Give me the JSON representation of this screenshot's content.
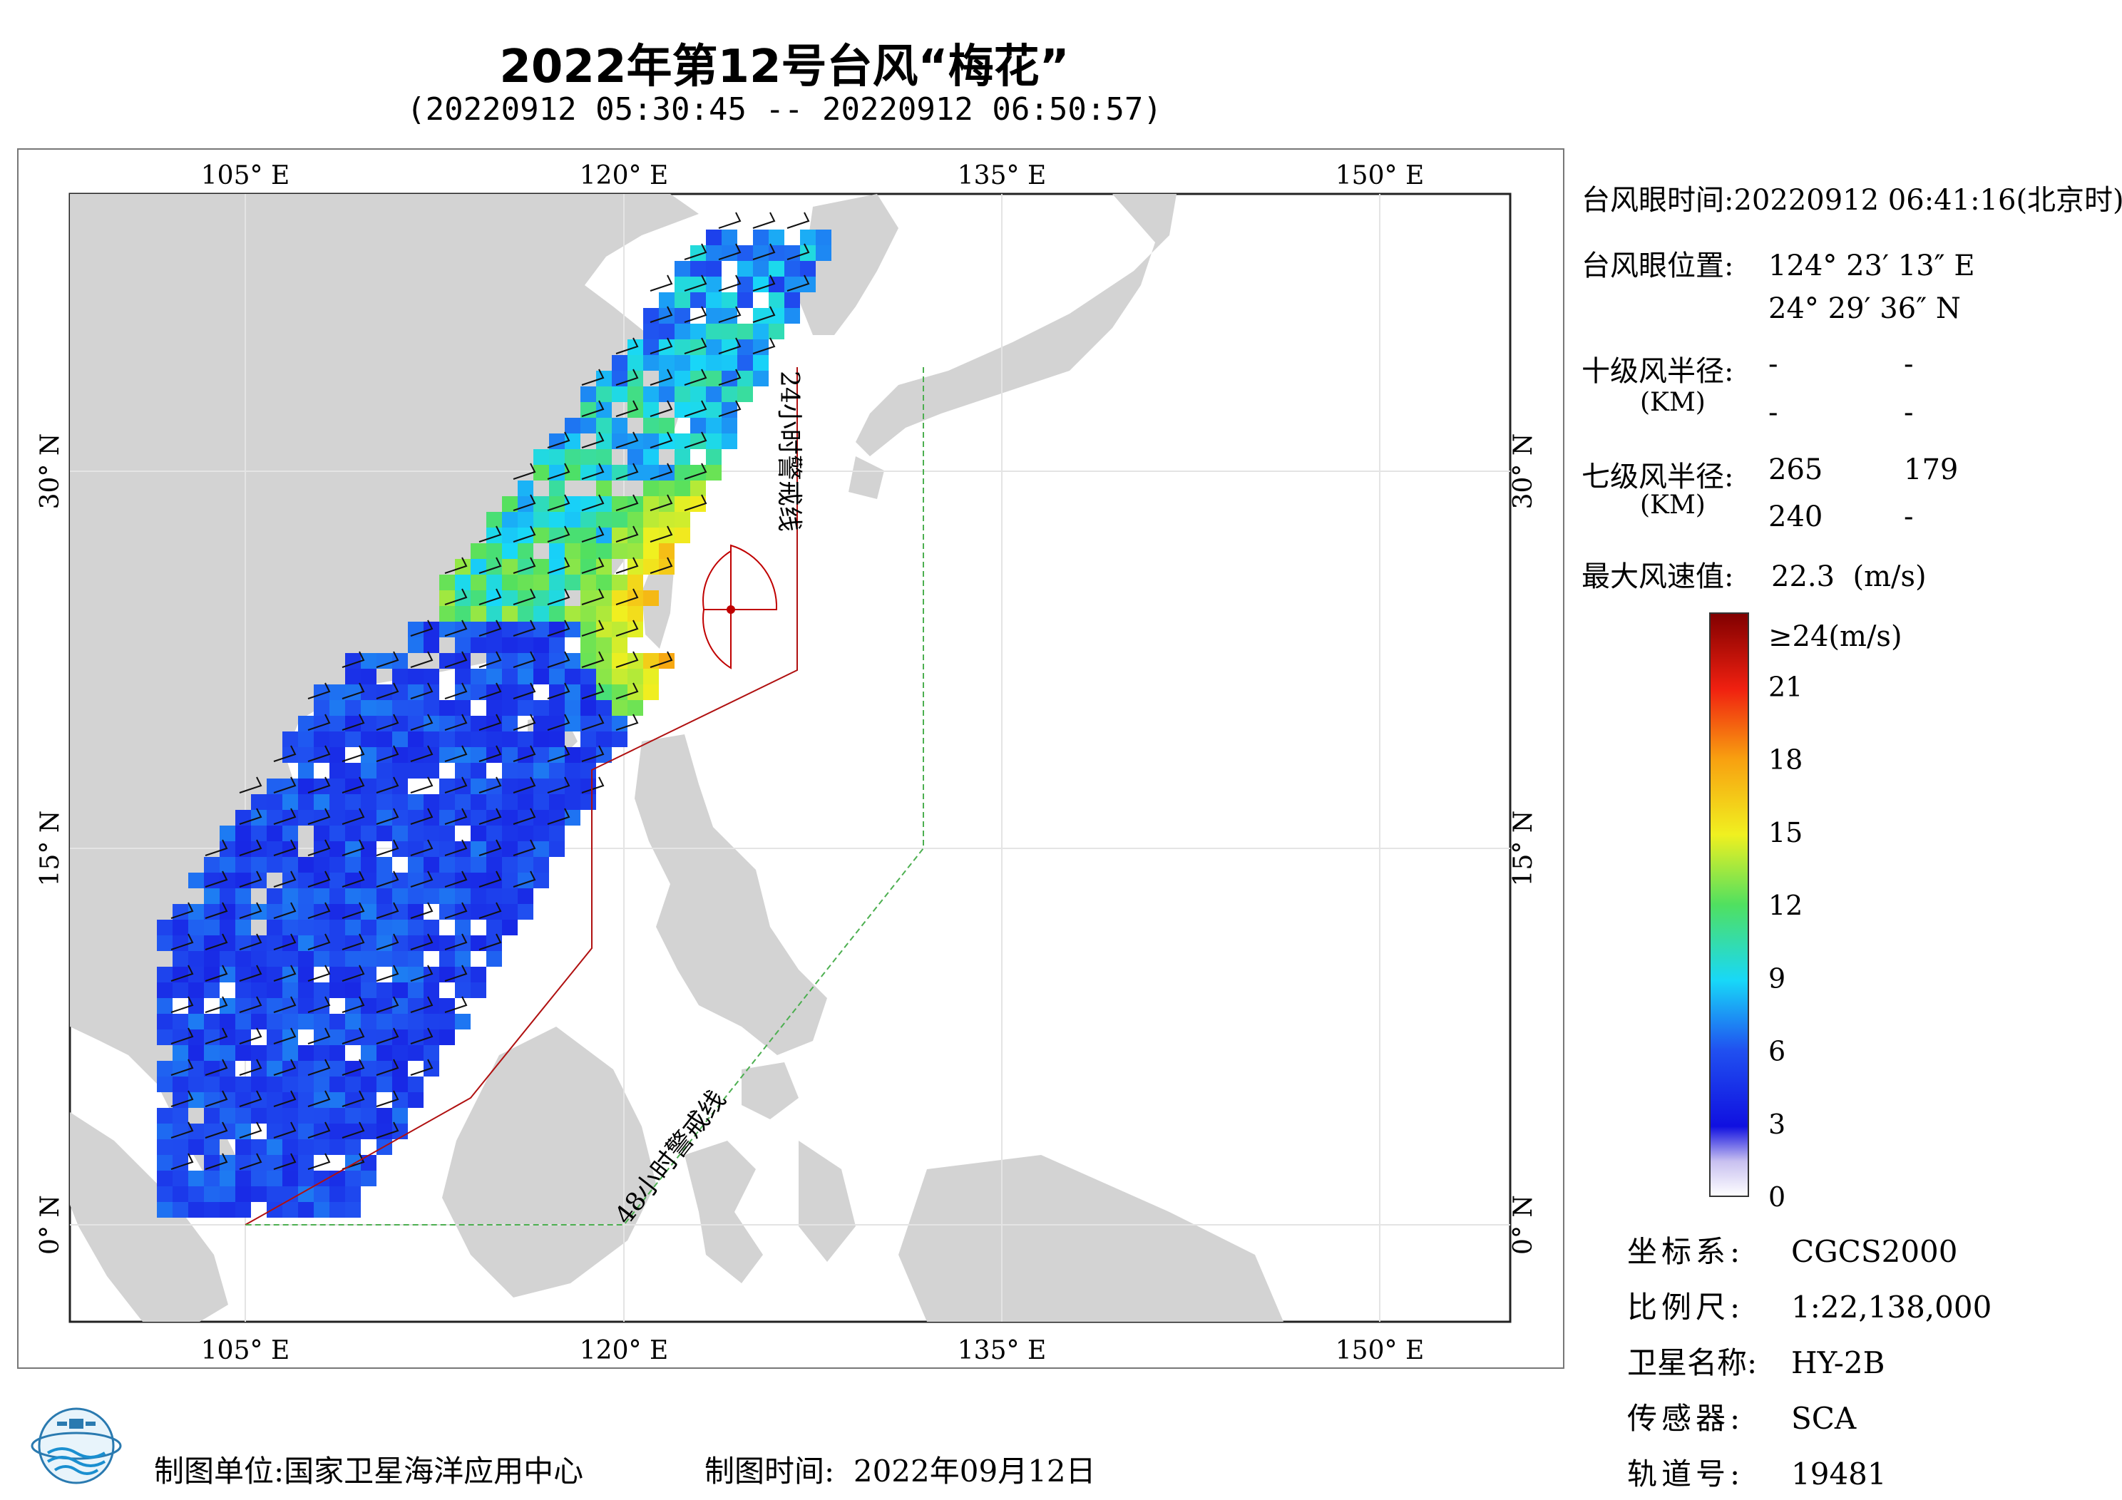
{
  "title": "2022年第12号台风“梅花”",
  "subtitle": "(20220912 05:30:45 -- 20220912 06:50:57)",
  "axes": {
    "lon_ticks": [
      "105° E",
      "120° E",
      "135° E",
      "150° E"
    ],
    "lat_ticks": [
      "30° N",
      "15° N",
      "0° N"
    ]
  },
  "map_labels": {
    "warn24": "24小时警戒线",
    "warn48": "48小时警戒线"
  },
  "info": {
    "eye_time_label": "台风眼时间:",
    "eye_time_value": "20220912 06:41:16(北京时)",
    "eye_pos_label": "台风眼位置:",
    "eye_lon": "124° 23′ 13″ E",
    "eye_lat": "24° 29′ 36″ N",
    "r10_label": "十级风半径:",
    "r10_unit": "(KM)",
    "r10_values": [
      "-",
      "-",
      "-",
      "-"
    ],
    "r7_label": "七级风半径:",
    "r7_unit": "(KM)",
    "r7_values": [
      "265",
      "179",
      "240",
      "-"
    ],
    "maxwind_label": "最大风速值:",
    "maxwind_value": "22.3",
    "maxwind_unit": "(m/s)"
  },
  "colorbar": {
    "top_label": "≥24(m/s)",
    "ticks": [
      "21",
      "18",
      "15",
      "12",
      "9",
      "6",
      "3",
      "0"
    ],
    "tick_values": [
      21,
      18,
      15,
      12,
      9,
      6,
      3,
      0
    ],
    "min": 0,
    "max": 24
  },
  "meta": {
    "crs_label": "坐标系:",
    "crs_value": "CGCS2000",
    "scale_label": "比例尺:",
    "scale_value": "1:22,138,000",
    "sat_label": "卫星名称:",
    "sat_value": "HY-2B",
    "sensor_label": "传感器:",
    "sensor_value": "SCA",
    "orbit_label": "轨道号:",
    "orbit_value": "19481"
  },
  "footer": {
    "unit_label": "制图单位:",
    "unit_value": "国家卫星海洋应用中心",
    "time_label": "制图时间:",
    "time_value": "2022年09月12日"
  },
  "colors": {
    "land": "#d3d3d3",
    "warn24": "#b01010",
    "warn48": "#4caf50"
  }
}
